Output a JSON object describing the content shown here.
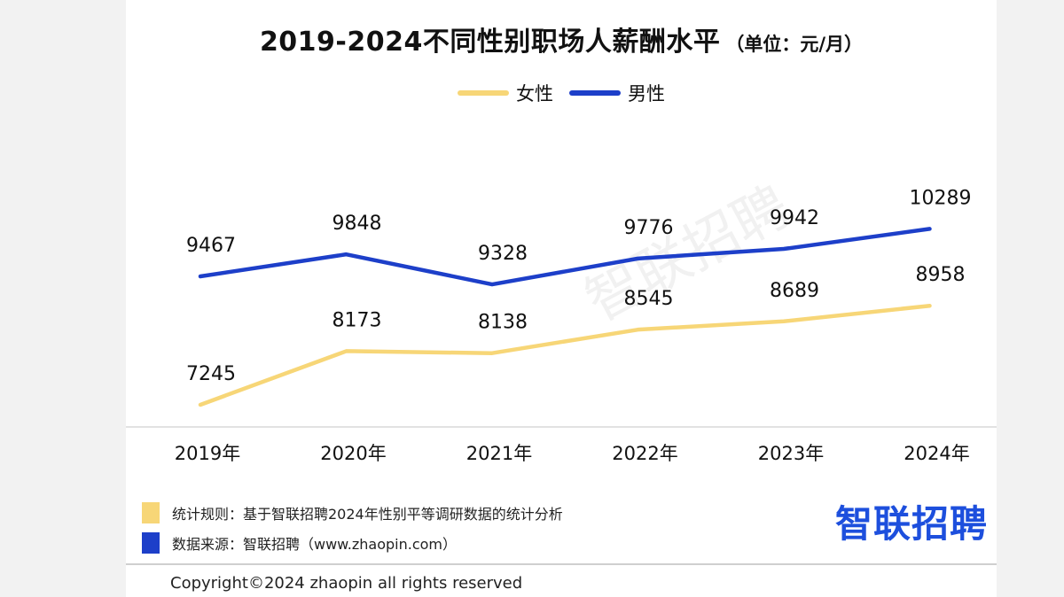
{
  "title": {
    "main": "2019-2024不同性别职场人薪酬水平",
    "unit": "（单位：元/月）"
  },
  "legend": {
    "female": "女性",
    "male": "男性"
  },
  "chart_data": {
    "type": "line",
    "title": "2019-2024不同性别职场人薪酬水平",
    "subtitle": "（单位：元/月）",
    "categories": [
      "2019年",
      "2020年",
      "2021年",
      "2022年",
      "2023年",
      "2024年"
    ],
    "series": [
      {
        "name": "女性",
        "values": [
          7245,
          8173,
          8138,
          8545,
          8689,
          8958
        ],
        "color": "#f7d677"
      },
      {
        "name": "男性",
        "values": [
          9467,
          9848,
          9328,
          9776,
          9942,
          10289
        ],
        "color": "#1d3fc9"
      }
    ],
    "ylim": [
      6800,
      11000
    ],
    "grid": false,
    "legend_position": "top-center",
    "data_labels": true
  },
  "notes": [
    {
      "text": "统计规则：基于智联招聘2024年性别平等调研数据的统计分析",
      "color": "#f7d677"
    },
    {
      "text": "数据来源：智联招聘（www.zhaopin.com）",
      "color": "#1d3fc9"
    }
  ],
  "brand": "智联招聘",
  "watermark": "智联招聘",
  "copyright": "Copyright©2024 zhaopin all rights reserved"
}
